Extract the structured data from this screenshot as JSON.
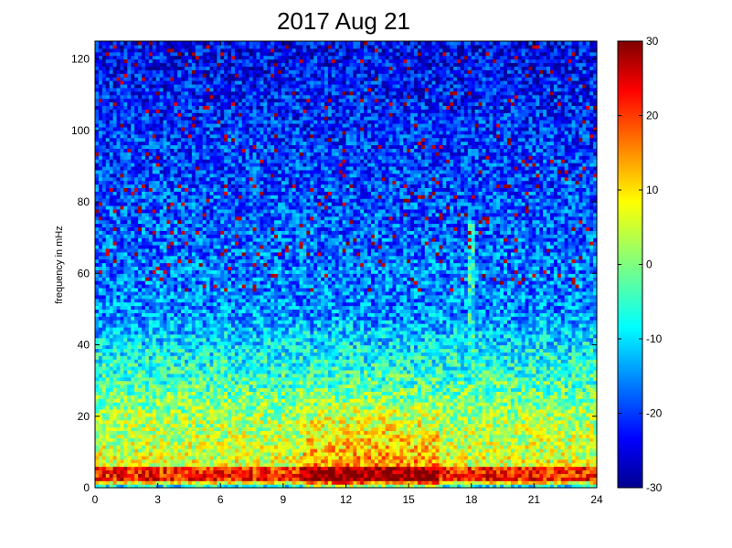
{
  "chart_data": {
    "type": "heatmap",
    "title": "2017 Aug 21",
    "xlabel": "",
    "ylabel": "frequency in mHz",
    "xlim": [
      0,
      24
    ],
    "ylim": [
      0,
      125
    ],
    "x_ticks": [
      "0",
      "3",
      "6",
      "9",
      "12",
      "15",
      "18",
      "21",
      "24"
    ],
    "y_ticks": [
      "0",
      "20",
      "40",
      "60",
      "80",
      "100",
      "120"
    ],
    "colorbar": {
      "colormap": "jet",
      "range": [
        -30,
        30
      ],
      "ticks": [
        "-30",
        "-20",
        "-10",
        "0",
        "10",
        "20",
        "30"
      ]
    },
    "x_bins": 140,
    "y_bins": 125,
    "features": [
      {
        "kind": "low-frequency band",
        "freq_range_mHz": [
          2,
          6
        ],
        "level": 22,
        "time_range_h": [
          0,
          24
        ]
      },
      {
        "kind": "broadband enhancement",
        "time_range_h": [
          10,
          16.5
        ],
        "freq_range_mHz": [
          0,
          28
        ],
        "level": 20
      },
      {
        "kind": "narrow vertical line",
        "time_h": 18,
        "freq_range_mHz": [
          10,
          75
        ],
        "level": -5
      }
    ]
  },
  "colors": {
    "jet_low": "#00008f",
    "jet_mid": "#7fff7f",
    "jet_high": "#800000",
    "axes": "#000000",
    "background": "#ffffff"
  }
}
